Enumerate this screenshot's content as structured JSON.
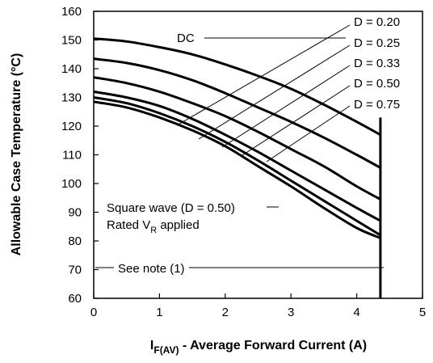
{
  "chart_data": {
    "type": "line",
    "xlabel_main": "I",
    "xlabel_sub": "F(AV)",
    "xlabel_rest": " - Average Forward Current (A)",
    "ylabel": "Allowable Case Temperature (°C)",
    "xlim": [
      0,
      5
    ],
    "ylim": [
      60,
      160
    ],
    "xticks": [
      "0",
      "1",
      "2",
      "3",
      "4",
      "5"
    ],
    "yticks": [
      "60",
      "70",
      "80",
      "90",
      "100",
      "110",
      "120",
      "130",
      "140",
      "150",
      "160"
    ],
    "grid": false,
    "series": [
      {
        "name": "DC",
        "x": [
          0,
          0.5,
          1.0,
          1.5,
          2.0,
          2.5,
          3.0,
          3.5,
          4.0,
          4.36
        ],
        "y": [
          150.5,
          149.5,
          147.5,
          145.0,
          141.5,
          137.5,
          133.0,
          127.5,
          121.5,
          117.0
        ]
      },
      {
        "name": "D = 0.75",
        "x": [
          0,
          0.5,
          1.0,
          1.5,
          2.0,
          2.5,
          3.0,
          3.5,
          4.0,
          4.36
        ],
        "y": [
          143.5,
          142.0,
          139.5,
          136.0,
          131.5,
          126.5,
          121.5,
          116.0,
          110.0,
          105.5
        ]
      },
      {
        "name": "D = 0.50",
        "x": [
          0,
          0.5,
          1.0,
          1.5,
          2.0,
          2.5,
          3.0,
          3.5,
          4.0,
          4.36
        ],
        "y": [
          137.0,
          135.0,
          132.0,
          128.0,
          123.5,
          118.0,
          112.0,
          106.0,
          99.0,
          94.5
        ]
      },
      {
        "name": "D = 0.33",
        "x": [
          0,
          0.5,
          1.0,
          1.5,
          2.0,
          2.5,
          3.0,
          3.5,
          4.0,
          4.36
        ],
        "y": [
          132.0,
          130.0,
          127.0,
          122.5,
          117.0,
          111.0,
          104.5,
          98.0,
          91.5,
          87.0
        ]
      },
      {
        "name": "D = 0.25",
        "x": [
          0,
          0.5,
          1.0,
          1.5,
          2.0,
          2.5,
          3.0,
          3.5,
          4.0,
          4.36
        ],
        "y": [
          130.0,
          128.0,
          124.5,
          120.0,
          114.5,
          108.0,
          101.0,
          94.0,
          87.0,
          82.0
        ]
      },
      {
        "name": "D = 0.20",
        "x": [
          0,
          0.5,
          1.0,
          1.5,
          2.0,
          2.5,
          3.0,
          3.5,
          4.0,
          4.36
        ],
        "y": [
          128.5,
          126.5,
          123.0,
          118.5,
          113.0,
          106.0,
          99.0,
          91.5,
          84.5,
          81.0
        ]
      }
    ],
    "limit_line": {
      "x": 4.36,
      "y_from": 60,
      "y_to": 123
    },
    "annotations": {
      "dc": "DC",
      "d020": "D = 0.20",
      "d025": "D = 0.25",
      "d033": "D = 0.33",
      "d050": "D = 0.50",
      "d075": "D = 0.75",
      "square_wave": "Square wave (D = 0.50)",
      "rated_main": "Rated V",
      "rated_sub": "R",
      "rated_rest": " applied",
      "see_note": "See note (1)"
    }
  }
}
